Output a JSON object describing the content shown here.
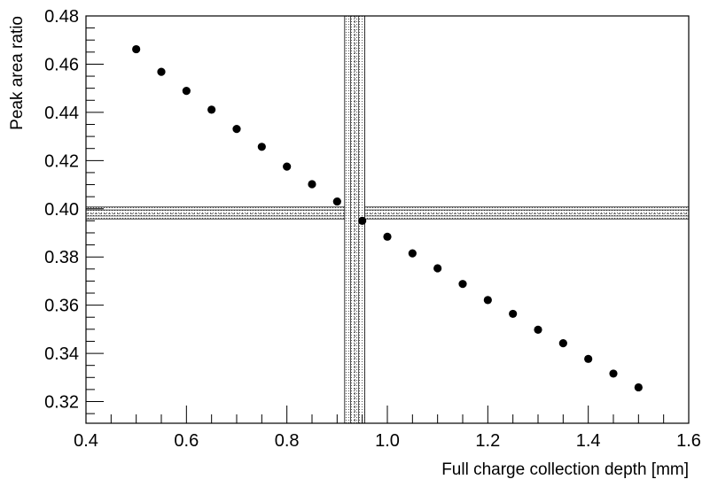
{
  "chart_data": {
    "type": "scatter",
    "title": "",
    "xlabel": "Full charge collection depth [mm]",
    "ylabel": "Peak area ratio",
    "xlim": [
      0.4,
      1.6
    ],
    "ylim": [
      0.311,
      0.48
    ],
    "x_ticks": [
      "0.4",
      "0.6",
      "0.8",
      "1.0",
      "1.2",
      "1.4",
      "1.6"
    ],
    "x_tick_values": [
      0.4,
      0.6,
      0.8,
      1.0,
      1.2,
      1.4,
      1.6
    ],
    "y_ticks": [
      "0.32",
      "0.34",
      "0.36",
      "0.38",
      "0.40",
      "0.42",
      "0.44",
      "0.46",
      "0.48"
    ],
    "y_tick_values": [
      0.32,
      0.34,
      0.36,
      0.38,
      0.4,
      0.42,
      0.44,
      0.46,
      0.48
    ],
    "series": [
      {
        "x": [
          0.5,
          0.55,
          0.6,
          0.65,
          0.7,
          0.75,
          0.8,
          0.85,
          0.9,
          0.95,
          1.0,
          1.05,
          1.1,
          1.15,
          1.2,
          1.25,
          1.3,
          1.35,
          1.4,
          1.45,
          1.5
        ],
        "y": [
          0.4662,
          0.4568,
          0.4489,
          0.4411,
          0.4331,
          0.4257,
          0.4175,
          0.4102,
          0.403,
          0.395,
          0.3884,
          0.3815,
          0.3753,
          0.3688,
          0.3621,
          0.3564,
          0.3498,
          0.3442,
          0.3377,
          0.3316,
          0.3259
        ],
        "marker": "filled-circle",
        "color": "#000000"
      }
    ],
    "reference_bands": {
      "horizontal": {
        "center": 0.398,
        "inner": [
          0.397,
          0.3995
        ],
        "outer": [
          0.3958,
          0.4007
        ]
      },
      "vertical": {
        "center": 0.935,
        "inner": [
          0.927,
          0.943
        ],
        "outer": [
          0.915,
          0.955
        ]
      }
    },
    "grid": false,
    "legend": "none"
  }
}
